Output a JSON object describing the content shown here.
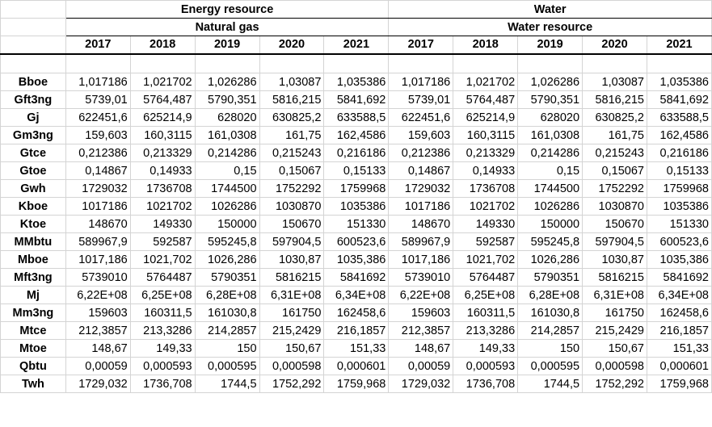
{
  "header": {
    "group_1": "Energy resource",
    "group_2": "Water",
    "sub_1": "Natural gas",
    "sub_2": "Water resource",
    "years": [
      "2017",
      "2018",
      "2019",
      "2020",
      "2021",
      "2017",
      "2018",
      "2019",
      "2020",
      "2021"
    ]
  },
  "rows": [
    {
      "label": "Bboe",
      "values": [
        "1,017186",
        "1,021702",
        "1,026286",
        "1,03087",
        "1,035386",
        "1,017186",
        "1,021702",
        "1,026286",
        "1,03087",
        "1,035386"
      ]
    },
    {
      "label": "Gft3ng",
      "values": [
        "5739,01",
        "5764,487",
        "5790,351",
        "5816,215",
        "5841,692",
        "5739,01",
        "5764,487",
        "5790,351",
        "5816,215",
        "5841,692"
      ]
    },
    {
      "label": "Gj",
      "values": [
        "622451,6",
        "625214,9",
        "628020",
        "630825,2",
        "633588,5",
        "622451,6",
        "625214,9",
        "628020",
        "630825,2",
        "633588,5"
      ]
    },
    {
      "label": "Gm3ng",
      "values": [
        "159,603",
        "160,3115",
        "161,0308",
        "161,75",
        "162,4586",
        "159,603",
        "160,3115",
        "161,0308",
        "161,75",
        "162,4586"
      ]
    },
    {
      "label": "Gtce",
      "values": [
        "0,212386",
        "0,213329",
        "0,214286",
        "0,215243",
        "0,216186",
        "0,212386",
        "0,213329",
        "0,214286",
        "0,215243",
        "0,216186"
      ]
    },
    {
      "label": "Gtoe",
      "values": [
        "0,14867",
        "0,14933",
        "0,15",
        "0,15067",
        "0,15133",
        "0,14867",
        "0,14933",
        "0,15",
        "0,15067",
        "0,15133"
      ]
    },
    {
      "label": "Gwh",
      "values": [
        "1729032",
        "1736708",
        "1744500",
        "1752292",
        "1759968",
        "1729032",
        "1736708",
        "1744500",
        "1752292",
        "1759968"
      ]
    },
    {
      "label": "Kboe",
      "values": [
        "1017186",
        "1021702",
        "1026286",
        "1030870",
        "1035386",
        "1017186",
        "1021702",
        "1026286",
        "1030870",
        "1035386"
      ]
    },
    {
      "label": "Ktoe",
      "values": [
        "148670",
        "149330",
        "150000",
        "150670",
        "151330",
        "148670",
        "149330",
        "150000",
        "150670",
        "151330"
      ]
    },
    {
      "label": "MMbtu",
      "values": [
        "589967,9",
        "592587",
        "595245,8",
        "597904,5",
        "600523,6",
        "589967,9",
        "592587",
        "595245,8",
        "597904,5",
        "600523,6"
      ]
    },
    {
      "label": "Mboe",
      "values": [
        "1017,186",
        "1021,702",
        "1026,286",
        "1030,87",
        "1035,386",
        "1017,186",
        "1021,702",
        "1026,286",
        "1030,87",
        "1035,386"
      ]
    },
    {
      "label": "Mft3ng",
      "values": [
        "5739010",
        "5764487",
        "5790351",
        "5816215",
        "5841692",
        "5739010",
        "5764487",
        "5790351",
        "5816215",
        "5841692"
      ]
    },
    {
      "label": "Mj",
      "values": [
        "6,22E+08",
        "6,25E+08",
        "6,28E+08",
        "6,31E+08",
        "6,34E+08",
        "6,22E+08",
        "6,25E+08",
        "6,28E+08",
        "6,31E+08",
        "6,34E+08"
      ]
    },
    {
      "label": "Mm3ng",
      "values": [
        "159603",
        "160311,5",
        "161030,8",
        "161750",
        "162458,6",
        "159603",
        "160311,5",
        "161030,8",
        "161750",
        "162458,6"
      ]
    },
    {
      "label": "Mtce",
      "values": [
        "212,3857",
        "213,3286",
        "214,2857",
        "215,2429",
        "216,1857",
        "212,3857",
        "213,3286",
        "214,2857",
        "215,2429",
        "216,1857"
      ]
    },
    {
      "label": "Mtoe",
      "values": [
        "148,67",
        "149,33",
        "150",
        "150,67",
        "151,33",
        "148,67",
        "149,33",
        "150",
        "150,67",
        "151,33"
      ]
    },
    {
      "label": "Qbtu",
      "values": [
        "0,00059",
        "0,000593",
        "0,000595",
        "0,000598",
        "0,000601",
        "0,00059",
        "0,000593",
        "0,000595",
        "0,000598",
        "0,000601"
      ]
    },
    {
      "label": "Twh",
      "values": [
        "1729,032",
        "1736,708",
        "1744,5",
        "1752,292",
        "1759,968",
        "1729,032",
        "1736,708",
        "1744,5",
        "1752,292",
        "1759,968"
      ]
    }
  ]
}
